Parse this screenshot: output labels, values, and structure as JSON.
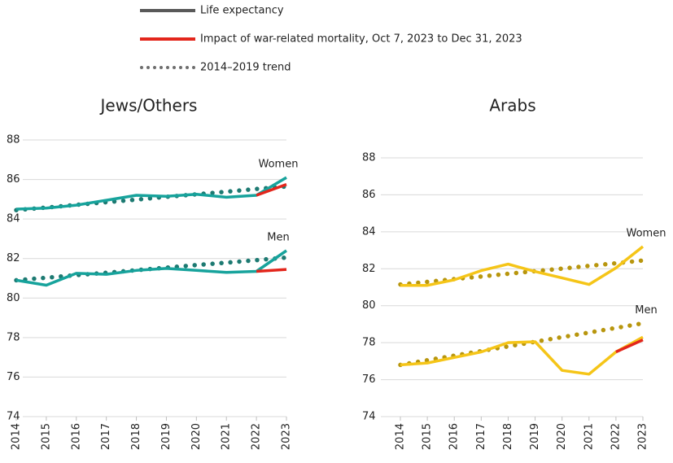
{
  "legend": [
    {
      "label": "Life expectancy",
      "color": "#595959",
      "style": "solid"
    },
    {
      "label": "Impact of war-related mortality, Oct 7, 2023 to Dec 31, 2023",
      "color": "#e3261c",
      "style": "solid"
    },
    {
      "label": "2014–2019 trend",
      "color": "#6e6e6e",
      "style": "dotted"
    }
  ],
  "chart_data": [
    {
      "type": "line",
      "title": "Jews/Others",
      "x": [
        2014,
        2015,
        2016,
        2017,
        2018,
        2019,
        2020,
        2021,
        2022,
        2023
      ],
      "xlim": [
        2014,
        2023
      ],
      "xticks": [
        2014,
        2015,
        2016,
        2017,
        2018,
        2019,
        2020,
        2021,
        2022,
        2023
      ],
      "ylim": [
        74,
        88
      ],
      "yticks": [
        74,
        76,
        78,
        80,
        82,
        84,
        86,
        88
      ],
      "grid": true,
      "series": [
        {
          "name": "Women",
          "color": "#17a39c",
          "values": [
            84.5,
            84.55,
            84.7,
            84.95,
            85.2,
            85.15,
            85.25,
            85.1,
            85.2,
            86.1
          ],
          "war_color": "#e3261c",
          "war_values": [
            null,
            null,
            null,
            null,
            null,
            null,
            null,
            null,
            85.2,
            85.75
          ],
          "trend_color": "#1d7a72",
          "trend_values": [
            84.45,
            84.58,
            84.72,
            84.85,
            84.98,
            85.12,
            85.25,
            85.38,
            85.52,
            85.65
          ]
        },
        {
          "name": "Men",
          "color": "#17a39c",
          "values": [
            80.9,
            80.65,
            81.25,
            81.2,
            81.4,
            81.5,
            81.4,
            81.3,
            81.35,
            82.4
          ],
          "war_color": "#e3261c",
          "war_values": [
            null,
            null,
            null,
            null,
            null,
            null,
            null,
            null,
            81.35,
            81.45
          ],
          "trend_color": "#1d7a72",
          "trend_values": [
            80.9,
            81.03,
            81.16,
            81.28,
            81.41,
            81.54,
            81.67,
            81.79,
            81.92,
            82.05
          ]
        }
      ]
    },
    {
      "type": "line",
      "title": "Arabs",
      "x": [
        2014,
        2015,
        2016,
        2017,
        2018,
        2019,
        2020,
        2021,
        2022,
        2023
      ],
      "xlim": [
        2014,
        2023
      ],
      "xticks": [
        2014,
        2015,
        2016,
        2017,
        2018,
        2019,
        2020,
        2021,
        2022,
        2023
      ],
      "ylim": [
        74,
        88
      ],
      "yticks": [
        74,
        76,
        78,
        80,
        82,
        84,
        86,
        88
      ],
      "grid": true,
      "series": [
        {
          "name": "Women",
          "color": "#f5c518",
          "values": [
            81.1,
            81.1,
            81.4,
            81.9,
            82.25,
            81.85,
            81.5,
            81.15,
            82.05,
            83.2
          ],
          "trend_color": "#b8960e",
          "trend_values": [
            81.15,
            81.29,
            81.44,
            81.58,
            81.73,
            81.87,
            82.01,
            82.16,
            82.3,
            82.45
          ]
        },
        {
          "name": "Men",
          "color": "#f5c518",
          "values": [
            76.8,
            76.9,
            77.2,
            77.5,
            78.0,
            78.05,
            76.5,
            76.3,
            77.5,
            78.3
          ],
          "war_color": "#e3261c",
          "war_values": [
            null,
            null,
            null,
            null,
            null,
            null,
            null,
            null,
            77.5,
            78.15
          ],
          "trend_color": "#b8960e",
          "trend_values": [
            76.8,
            77.05,
            77.3,
            77.55,
            77.8,
            78.05,
            78.3,
            78.55,
            78.8,
            79.05
          ]
        }
      ]
    }
  ]
}
